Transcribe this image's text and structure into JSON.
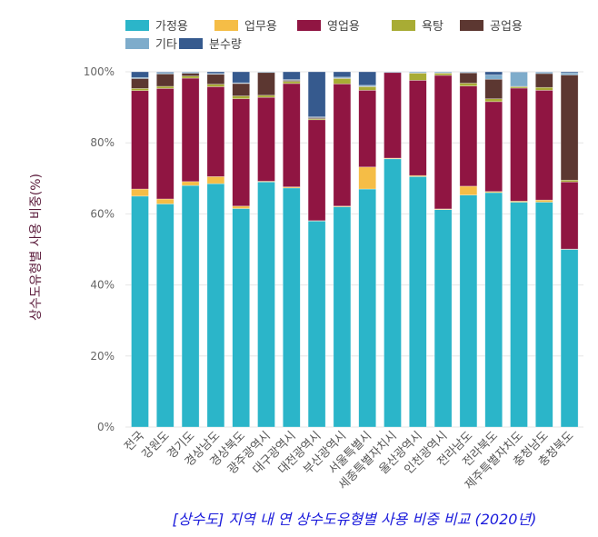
{
  "chart_data": {
    "type": "bar",
    "stacked": "percent",
    "title": "[상수도] 지역 내 연 상수도유형별 사용 비중 비교 (2020년)",
    "xlabel": "",
    "ylabel": "상수도유형별 사용 비중(%)",
    "ylim": [
      0,
      100
    ],
    "yticks": [
      "0%",
      "20%",
      "40%",
      "60%",
      "80%",
      "100%"
    ],
    "grid": true,
    "legend_position": "top-left",
    "categories": [
      "전국",
      "강원도",
      "경기도",
      "경상남도",
      "경상북도",
      "광주광역시",
      "대구광역시",
      "대전광역시",
      "부산광역시",
      "서울특별시",
      "세종특별자치시",
      "울산광역시",
      "인천광역시",
      "전라남도",
      "전라북도",
      "제주특별자치도",
      "충청남도",
      "충청북도"
    ],
    "series": [
      {
        "name": "가정용",
        "color": "#2bb5c9",
        "values": [
          65,
          62.8,
          68,
          68.5,
          61.5,
          69,
          67.3,
          58,
          62,
          67,
          75.5,
          70.5,
          61.2,
          65.3,
          66,
          63.3,
          63.3,
          50
        ]
      },
      {
        "name": "업무용",
        "color": "#f5bd46",
        "values": [
          2,
          1.4,
          1.1,
          2,
          0.7,
          0.2,
          0.3,
          0.1,
          0.2,
          6.2,
          0.2,
          0.3,
          0.2,
          2.5,
          0.3,
          0.3,
          0.6,
          0.1
        ]
      },
      {
        "name": "영업용",
        "color": "#901542",
        "values": [
          27.7,
          31.1,
          29.1,
          25.3,
          30.2,
          23.6,
          29.1,
          28.4,
          34.4,
          21.6,
          24.1,
          26.8,
          37.6,
          28.2,
          25.3,
          31.8,
          30.9,
          18.9
        ]
      },
      {
        "name": "욕탕",
        "color": "#a8ac34",
        "values": [
          0.6,
          0.6,
          0.6,
          0.7,
          0.8,
          0.6,
          0.6,
          0.3,
          1.5,
          1,
          0,
          2,
          0.6,
          0.8,
          0.8,
          0.4,
          0.8,
          0.5
        ]
      },
      {
        "name": "공업용",
        "color": "#5c3731",
        "values": [
          2.8,
          3.5,
          0.8,
          2.8,
          3.5,
          6.4,
          0.3,
          0.3,
          0.1,
          0.1,
          0,
          0.1,
          0.1,
          2.9,
          5.5,
          0.1,
          3.9,
          29.6
        ]
      },
      {
        "name": "기타",
        "color": "#7eaccb",
        "values": [
          0.3,
          0.4,
          0.3,
          0.2,
          0.2,
          0.2,
          0.2,
          0.2,
          0.3,
          0.3,
          0.2,
          0.3,
          0.3,
          0.2,
          1.2,
          4,
          0.4,
          0.6
        ]
      },
      {
        "name": "분수량",
        "color": "#365a8e",
        "values": [
          1.6,
          0.2,
          0.1,
          0.5,
          3.1,
          0,
          2.2,
          12.7,
          1.5,
          3.8,
          0,
          0,
          0,
          0.1,
          0.9,
          0.1,
          0.1,
          0.3
        ]
      }
    ]
  }
}
